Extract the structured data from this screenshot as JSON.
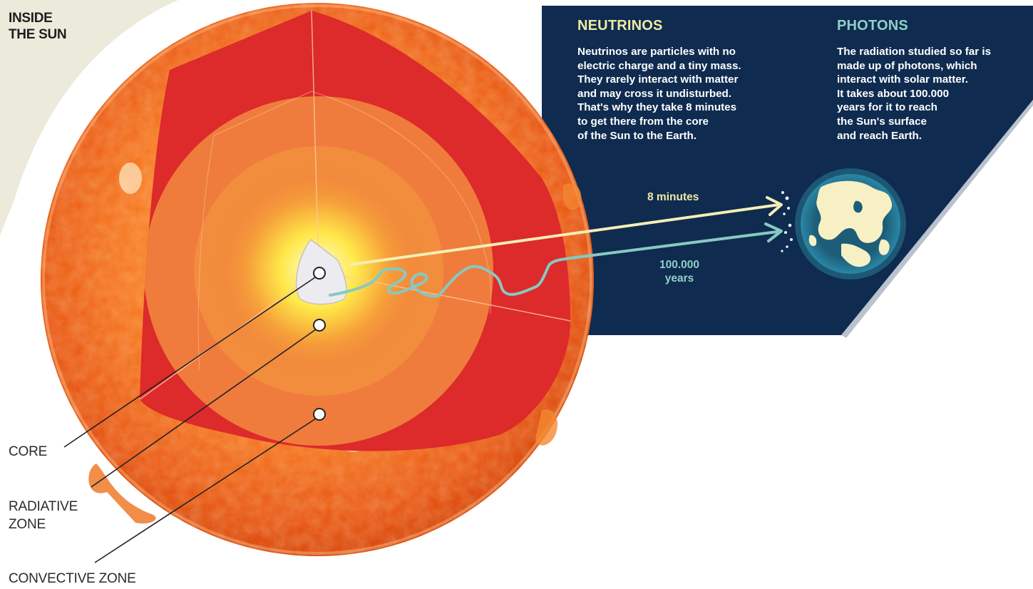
{
  "title": "INSIDE\nTHE SUN",
  "neutrinos": {
    "heading": "NEUTRINOS",
    "text": "Neutrinos are particles with no\nelectric charge and a tiny mass.\nThey rarely interact with matter\nand may cross it undisturbed.\nThat's why they take 8 minutes\nto get there from the core\nof the Sun to the Earth.",
    "path_label": "8 minutes"
  },
  "photons": {
    "heading": "PHOTONS",
    "text": "The radiation studied so far is\nmade up of photons, which\ninteract with solar matter.\nIt takes about 100.000\nyears for it to reach\nthe Sun's surface\nand reach Earth.",
    "path_label": "100.000\nyears"
  },
  "zones": {
    "core": "CORE",
    "radiative": "RADIATIVE\nZONE",
    "convective": "CONVECTIVE ZONE"
  },
  "colors": {
    "navy": "#0f2b50",
    "neutrino_path": "#f4efb4",
    "photon_path": "#86c9c1",
    "convective_zone": "#dd2a2a",
    "radiative_zone": "#ef7c3c",
    "core_glow": "#ffe94a",
    "sun_surface": "#f06a1c",
    "earth_ocean": "#1d5d78",
    "earth_land": "#f6f0c4"
  },
  "icons": [
    "sun-icon",
    "earth-icon"
  ]
}
